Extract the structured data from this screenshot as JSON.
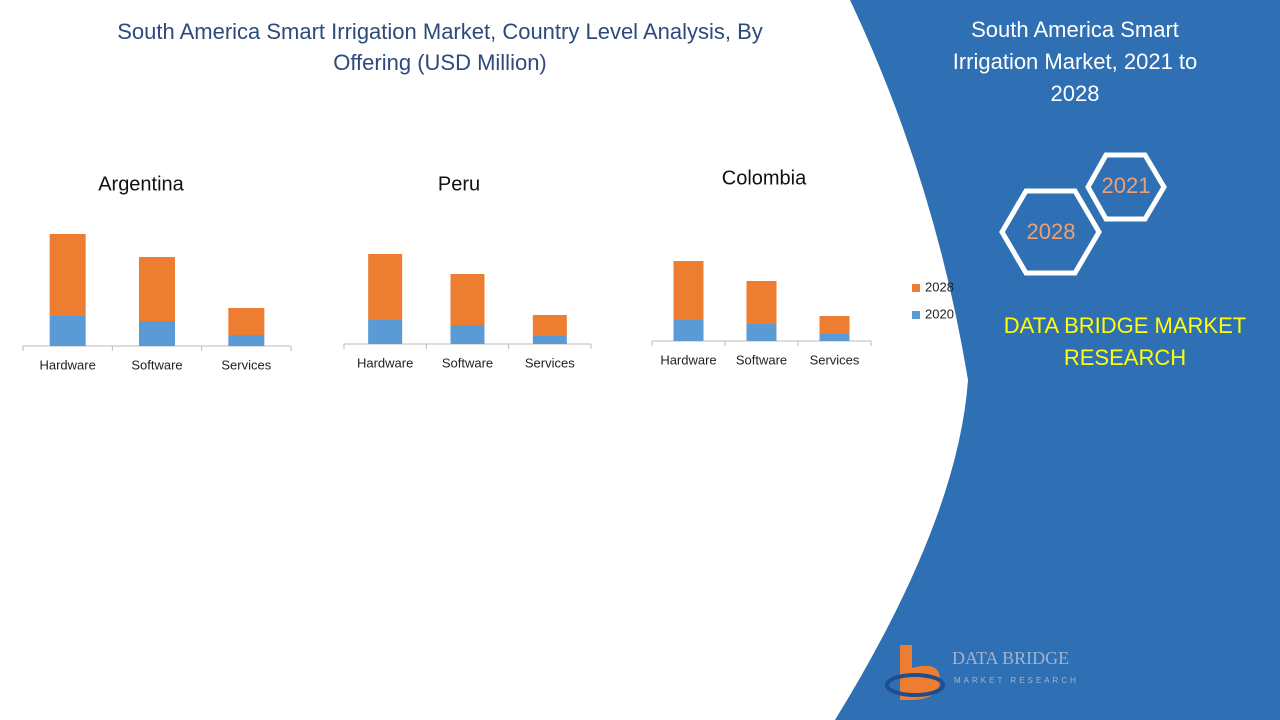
{
  "title": "South America Smart Irrigation Market, Country Level Analysis, By Offering (USD Million)",
  "chart_data": [
    {
      "type": "bar",
      "stacked": true,
      "title": "Argentina",
      "categories": [
        "Hardware",
        "Software",
        "Services"
      ],
      "series": [
        {
          "name": "2020",
          "color": "#5b9bd5",
          "values": [
            30,
            25,
            11
          ]
        },
        {
          "name": "2028",
          "color": "#ed7d31",
          "values": [
            82,
            64,
            27
          ]
        }
      ]
    },
    {
      "type": "bar",
      "stacked": true,
      "title": "Peru",
      "categories": [
        "Hardware",
        "Software",
        "Services"
      ],
      "series": [
        {
          "name": "2020",
          "color": "#5b9bd5",
          "values": [
            24,
            19,
            8
          ]
        },
        {
          "name": "2028",
          "color": "#ed7d31",
          "values": [
            66,
            51,
            21
          ]
        }
      ]
    },
    {
      "type": "bar",
      "stacked": true,
      "title": "Colombia",
      "categories": [
        "Hardware",
        "Software",
        "Services"
      ],
      "series": [
        {
          "name": "2020",
          "color": "#5b9bd5",
          "values": [
            21,
            17,
            7
          ]
        },
        {
          "name": "2028",
          "color": "#ed7d31",
          "values": [
            59,
            43,
            18
          ]
        }
      ]
    }
  ],
  "panel": {
    "title": "South America Smart Irrigation Market, 2021 to 2028",
    "hex_labels": [
      "2021",
      "2028"
    ],
    "brand": "DATA BRIDGE MARKET RESEARCH",
    "logo_name": "DATA BRIDGE",
    "logo_sub": "MARKET RESEARCH"
  }
}
